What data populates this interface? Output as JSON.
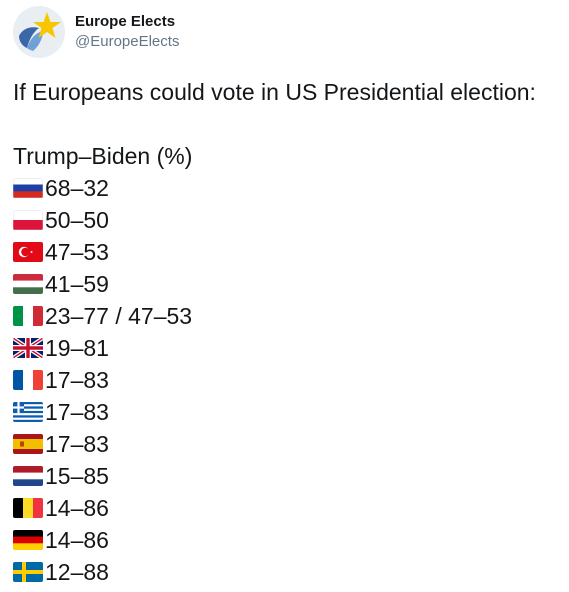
{
  "header": {
    "display_name": "Europe Elects",
    "handle": "@EuropeElects",
    "avatar_icon": "europe-elects-logo-icon"
  },
  "tweet": {
    "title": "If Europeans could vote in US Presidential election:",
    "subtitle": "Trump–Biden (%)",
    "rows": [
      {
        "flag": "russia-flag-icon",
        "value": "68–32"
      },
      {
        "flag": "poland-flag-icon",
        "value": "50–50"
      },
      {
        "flag": "turkey-flag-icon",
        "value": "47–53"
      },
      {
        "flag": "hungary-flag-icon",
        "value": "41–59"
      },
      {
        "flag": "italy-flag-icon",
        "value": "23–77 / 47–53"
      },
      {
        "flag": "uk-flag-icon",
        "value": "19–81"
      },
      {
        "flag": "france-flag-icon",
        "value": "17–83"
      },
      {
        "flag": "greece-flag-icon",
        "value": "17–83"
      },
      {
        "flag": "spain-flag-icon",
        "value": "17–83"
      },
      {
        "flag": "netherlands-flag-icon",
        "value": "15–85"
      },
      {
        "flag": "belgium-flag-icon",
        "value": "14–86"
      },
      {
        "flag": "germany-flag-icon",
        "value": "14–86"
      },
      {
        "flag": "sweden-flag-icon",
        "value": "12–88"
      }
    ]
  }
}
